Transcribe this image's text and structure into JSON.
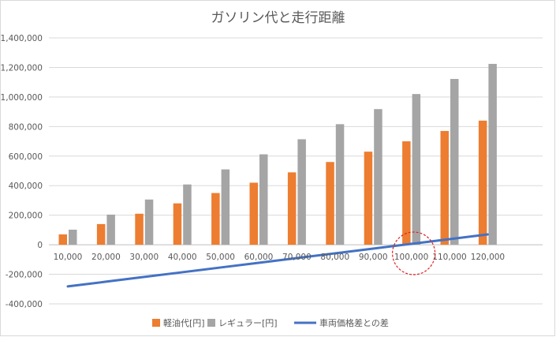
{
  "chart_data": {
    "type": "bar",
    "title": "ガソリン代と走行距離",
    "categories": [
      "10,000",
      "20,000",
      "30,000",
      "40,000",
      "50,000",
      "60,000",
      "70,000",
      "80,000",
      "90,000",
      "100,000",
      "110,000",
      "120,000"
    ],
    "y_tick_labels": [
      "-400,000",
      "-200,000",
      "0",
      "200,000",
      "400,000",
      "600,000",
      "800,000",
      "1,000,000",
      "1,200,000",
      "1,400,000"
    ],
    "ylim": [
      -400000,
      1400000
    ],
    "grid": true,
    "legend_position": "bottom",
    "series": [
      {
        "name": "軽油代[円]",
        "type": "bar",
        "color": "#ED7D31",
        "values": [
          70000,
          140000,
          210000,
          280000,
          350000,
          420000,
          490000,
          560000,
          630000,
          700000,
          770000,
          840000
        ]
      },
      {
        "name": "レギュラー[円]",
        "type": "bar",
        "color": "#A5A5A5",
        "values": [
          102000,
          204000,
          306000,
          408000,
          510000,
          612000,
          714000,
          816000,
          918000,
          1020000,
          1122000,
          1224000
        ]
      },
      {
        "name": "車両価格差との差",
        "type": "line",
        "color": "#4472C4",
        "values": [
          -282000,
          -250000,
          -218000,
          -186000,
          -154000,
          -122000,
          -90000,
          -58000,
          -26000,
          6000,
          38000,
          70000
        ]
      }
    ],
    "annotation": {
      "type": "dashed-circle",
      "category": "100,000",
      "color": "#e02020"
    }
  }
}
